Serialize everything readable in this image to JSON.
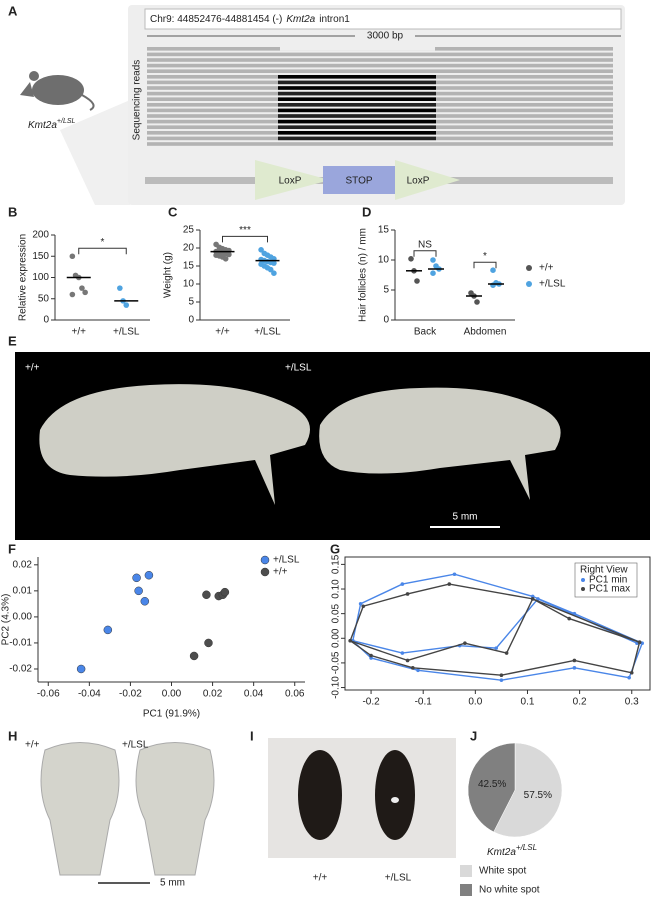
{
  "panel_a": {
    "letter": "A",
    "locus": "Chr9: 44852476-44881454 (-)",
    "gene": "Kmt2a",
    "feature": "intron1",
    "scale": "3000 bp",
    "reads_label": "Sequencing reads",
    "mouse_gene": "Kmt2a",
    "mouse_genotype": "+/LSL",
    "cassette": [
      "LoxP",
      "STOP",
      "LoxP"
    ]
  },
  "panel_e": {
    "letter": "E",
    "labels": [
      "+/+",
      "+/LSL"
    ],
    "scale": "5 mm"
  },
  "panel_h": {
    "letter": "H",
    "labels": [
      "+/+",
      "+/LSL"
    ],
    "scale": "5 mm"
  },
  "panel_i": {
    "letter": "I",
    "labels": [
      "+/+",
      "+/LSL"
    ]
  },
  "chart_data": [
    {
      "type": "strip",
      "panel": "B",
      "ylabel": "Relative expression",
      "ylim": [
        0,
        200
      ],
      "yticks": [
        0,
        50,
        100,
        150,
        200
      ],
      "categories": [
        "+/+",
        "+/LSL"
      ],
      "colors": [
        "#777777",
        "#4fa3e0"
      ],
      "points": [
        [
          150,
          105,
          100,
          75,
          65,
          60
        ],
        [
          75,
          45,
          35
        ]
      ],
      "medians": [
        100,
        45
      ],
      "significance": "*"
    },
    {
      "type": "strip",
      "panel": "C",
      "ylabel": "Weight (g)",
      "ylim": [
        0,
        25
      ],
      "yticks": [
        0,
        5,
        10,
        15,
        20,
        25
      ],
      "categories": [
        "+/+",
        "+/LSL"
      ],
      "colors": [
        "#777777",
        "#4fa3e0"
      ],
      "points": [
        [
          21,
          20.2,
          19.8,
          19.5,
          19.3,
          19,
          18.8,
          18.6,
          18.5,
          18.2,
          18,
          17.8,
          17.5,
          17
        ],
        [
          19.5,
          18.5,
          18,
          17.5,
          17,
          16.8,
          16.5,
          16.2,
          16,
          15.8,
          15.5,
          15,
          14.5,
          14,
          13
        ]
      ],
      "medians": [
        19,
        16.5
      ],
      "significance": "***"
    },
    {
      "type": "grouped_strip",
      "panel": "D",
      "ylabel": "Hair follicles (n) / mm",
      "ylim": [
        0,
        15
      ],
      "yticks": [
        0,
        5,
        10,
        15
      ],
      "categories": [
        "Back",
        "Abdomen"
      ],
      "significance": [
        "NS",
        "*"
      ],
      "series": [
        {
          "name": "+/+",
          "color": "#555555",
          "points": [
            [
              10.2,
              8.2,
              6.5
            ],
            [
              4.5,
              4.0,
              3.0
            ]
          ],
          "medians": [
            8.2,
            4.0
          ]
        },
        {
          "name": "+/LSL",
          "color": "#4fa3e0",
          "points": [
            [
              10.0,
              9.0,
              8.5,
              7.8
            ],
            [
              8.3,
              6.2,
              6.0,
              5.8
            ]
          ],
          "medians": [
            8.5,
            6.0
          ]
        }
      ]
    },
    {
      "type": "scatter",
      "panel": "F",
      "xlabel": "PC1 (91.9%)",
      "ylabel": "PC2 (4.3%)",
      "xlim": [
        -0.065,
        0.065
      ],
      "ylim": [
        -0.025,
        0.023
      ],
      "xticks": [
        -0.06,
        -0.04,
        -0.02,
        {
          "value": 0,
          "label": "0.00"
        },
        0.02,
        0.04,
        0.06
      ],
      "yticks": [
        -0.02,
        -0.01,
        {
          "value": 0,
          "label": "0.00"
        },
        0.01,
        0.02
      ],
      "legend": "top-right",
      "series": [
        {
          "name": "+/LSL",
          "color": "#4a86e8",
          "x": [
            -0.044,
            -0.031,
            -0.017,
            -0.016,
            -0.013,
            -0.011
          ],
          "y": [
            -0.02,
            -0.005,
            0.015,
            0.01,
            0.006,
            0.016
          ]
        },
        {
          "name": "+/+",
          "color": "#4d4d4d",
          "x": [
            0.011,
            0.018,
            0.017,
            0.023,
            0.025,
            0.026
          ],
          "y": [
            -0.015,
            -0.01,
            0.0085,
            0.008,
            0.0085,
            0.0095
          ]
        }
      ]
    },
    {
      "type": "line",
      "panel": "G",
      "legend_title": "Right View",
      "legend": "top-right",
      "xlim": [
        -0.25,
        0.335
      ],
      "ylim": [
        -0.105,
        0.165
      ],
      "xticks": [
        -0.2,
        -0.1,
        {
          "value": 0,
          "label": "0.0"
        },
        0.1,
        0.2,
        0.3
      ],
      "yticks": [
        {
          "value": -0.1,
          "label": "-0.10"
        },
        -0.05,
        {
          "value": 0,
          "label": "0.00"
        },
        0.05,
        {
          "value": 0.1,
          "label": "0.10"
        },
        0.15
      ],
      "series": [
        {
          "name": "PC1 min",
          "color": "#4a86e8",
          "x": [
            -0.235,
            -0.22,
            -0.14,
            -0.04,
            0.11,
            0.19,
            0.32,
            0.295,
            0.19,
            0.05,
            -0.11,
            -0.2,
            -0.235,
            -0.14,
            -0.03,
            0.04,
            0.12,
            0.31
          ],
          "y": [
            -0.005,
            0.07,
            0.11,
            0.13,
            0.085,
            0.05,
            -0.01,
            -0.08,
            -0.06,
            -0.085,
            -0.065,
            -0.04,
            -0.005,
            -0.03,
            -0.015,
            -0.02,
            0.08,
            -0.01
          ]
        },
        {
          "name": "PC1 max",
          "color": "#444444",
          "x": [
            -0.24,
            -0.215,
            -0.13,
            -0.05,
            0.11,
            0.18,
            0.315,
            0.3,
            0.19,
            0.05,
            -0.12,
            -0.2,
            -0.24,
            -0.13,
            -0.02,
            0.06,
            0.11,
            0.315
          ],
          "y": [
            -0.005,
            0.065,
            0.09,
            0.11,
            0.08,
            0.04,
            -0.008,
            -0.07,
            -0.045,
            -0.075,
            -0.06,
            -0.035,
            -0.005,
            -0.045,
            -0.01,
            -0.03,
            0.08,
            -0.008
          ]
        }
      ]
    },
    {
      "type": "pie",
      "panel": "J",
      "gene": "Kmt2a",
      "genotype": "+/LSL",
      "categories": [
        "White spot",
        "No white spot"
      ],
      "values": [
        57.5,
        42.5
      ],
      "value_labels": [
        "57.5%",
        "42.5%"
      ],
      "colors": [
        "#d9d9d9",
        "#808080"
      ]
    }
  ]
}
